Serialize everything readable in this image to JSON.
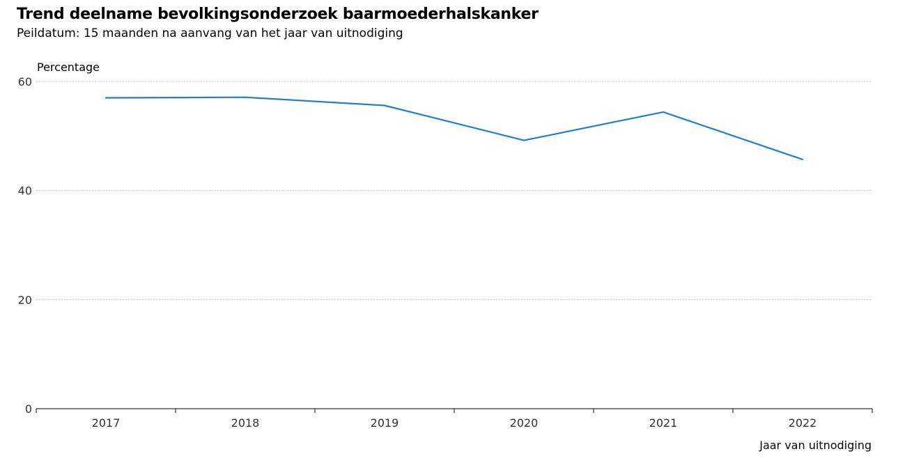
{
  "chart_data": {
    "type": "line",
    "title": "Trend deelname bevolkingsonderzoek baarmoederhalskanker",
    "subtitle": "Peildatum: 15 maanden na aanvang van het jaar van uitnodiging",
    "xlabel": "Jaar van uitnodiging",
    "ylabel": "Percentage",
    "categories": [
      "2017",
      "2018",
      "2019",
      "2020",
      "2021",
      "2022"
    ],
    "series": [
      {
        "values": [
          57.0,
          57.1,
          55.6,
          49.2,
          54.4,
          45.7
        ]
      }
    ],
    "ylim": [
      0,
      60
    ],
    "yticks": [
      0,
      20,
      40,
      60
    ],
    "grid": true,
    "line_color": "#1f7fd1"
  }
}
